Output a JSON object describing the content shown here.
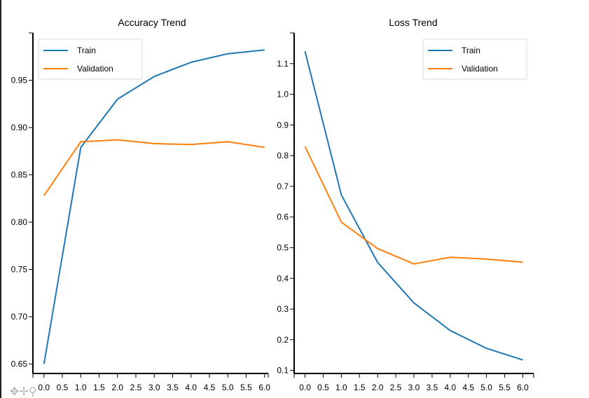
{
  "chart_data": [
    {
      "type": "line",
      "title": "Accuracy Trend",
      "xlabel": "",
      "ylabel": "",
      "x": [
        0,
        1,
        2,
        3,
        4,
        5,
        6
      ],
      "xticks": [
        "0.0",
        "0.5",
        "1.0",
        "1.5",
        "2.0",
        "2.5",
        "3.0",
        "3.5",
        "4.0",
        "4.5",
        "5.0",
        "5.5",
        "6.0"
      ],
      "xlim": [
        -0.3,
        6.1
      ],
      "yticks": [
        "0.65",
        "0.70",
        "0.75",
        "0.80",
        "0.85",
        "0.90",
        "0.95"
      ],
      "ylim": [
        0.64,
        1.0
      ],
      "legend": "top-left",
      "series": [
        {
          "name": "Train",
          "color": "#1f77b4",
          "values": [
            0.65,
            0.879,
            0.93,
            0.954,
            0.969,
            0.978,
            0.982
          ]
        },
        {
          "name": "Validation",
          "color": "#ff7f0e",
          "values": [
            0.828,
            0.885,
            0.887,
            0.883,
            0.882,
            0.885,
            0.879
          ]
        }
      ]
    },
    {
      "type": "line",
      "title": "Loss Trend",
      "xlabel": "",
      "ylabel": "",
      "x": [
        0,
        1,
        2,
        3,
        4,
        5,
        6
      ],
      "xticks": [
        "0.0",
        "0.5",
        "1.0",
        "1.5",
        "2.0",
        "2.5",
        "3.0",
        "3.5",
        "4.0",
        "4.5",
        "5.0",
        "5.5",
        "6.0"
      ],
      "xlim": [
        -0.3,
        6.3
      ],
      "yticks": [
        "0.1",
        "0.2",
        "0.3",
        "0.4",
        "0.5",
        "0.6",
        "0.7",
        "0.8",
        "0.9",
        "1.0",
        "1.1"
      ],
      "ylim": [
        0.09,
        1.2
      ],
      "legend": "top-right",
      "series": [
        {
          "name": "Train",
          "color": "#1f77b4",
          "values": [
            1.14,
            0.672,
            0.452,
            0.32,
            0.23,
            0.172,
            0.134
          ]
        },
        {
          "name": "Validation",
          "color": "#ff7f0e",
          "values": [
            0.83,
            0.583,
            0.497,
            0.447,
            0.469,
            0.463,
            0.453
          ]
        }
      ]
    }
  ],
  "toolbar": {
    "icons": "✥✢⚲",
    "icon_names": [
      "pan-icon",
      "move-icon",
      "zoom-icon"
    ]
  }
}
